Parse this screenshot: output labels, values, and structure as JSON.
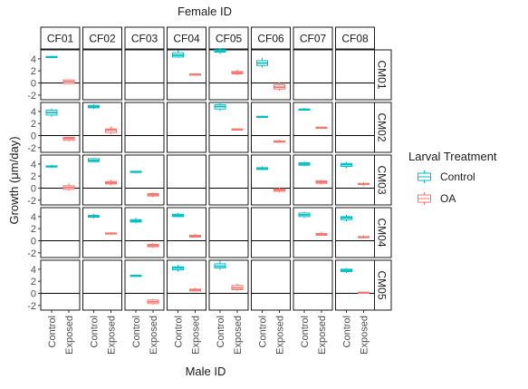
{
  "chart_data": {
    "type": "boxplot",
    "title": "",
    "top_strip_title": "Female ID",
    "xlabel": "Male ID",
    "ylabel": "Growth (μm/day)",
    "col_facets": [
      "CF01",
      "CF02",
      "CF03",
      "CF04",
      "CF05",
      "CF06",
      "CF07",
      "CF08"
    ],
    "row_facets": [
      "CM01",
      "CM02",
      "CM03",
      "CM04",
      "CM05"
    ],
    "x_categories": [
      "Control",
      "Exposed"
    ],
    "y_ticks": [
      -2,
      0,
      2,
      4
    ],
    "ylim": [
      -2.5,
      5.5
    ],
    "reference_line_y": 0,
    "legend": {
      "title": "Larval Treatment",
      "placement": "right",
      "entries": [
        {
          "label": "Control",
          "color": "#00BFC4"
        },
        {
          "label": "OA",
          "color": "#F8766D"
        }
      ]
    },
    "cells": [
      {
        "row": "CM01",
        "col": "CF01",
        "control": [
          4.1,
          4.2,
          4.3,
          4.4,
          4.5
        ],
        "exposed": [
          -0.2,
          -0.1,
          0.2,
          0.5,
          0.6
        ]
      },
      {
        "row": "CM01",
        "col": "CF04",
        "control": [
          4.2,
          4.3,
          4.6,
          5.0,
          5.4
        ],
        "exposed": [
          1.2,
          1.3,
          1.4,
          1.5,
          1.6
        ]
      },
      {
        "row": "CM01",
        "col": "CF05",
        "control": [
          4.8,
          5.1,
          5.3,
          5.5,
          5.7
        ],
        "exposed": [
          1.3,
          1.5,
          1.7,
          1.9,
          2.2
        ]
      },
      {
        "row": "CM01",
        "col": "CF06",
        "control": [
          2.6,
          2.9,
          3.3,
          3.7,
          4.2
        ],
        "exposed": [
          -1.3,
          -1.0,
          -0.7,
          -0.3,
          0.1
        ]
      },
      {
        "row": "CM02",
        "col": "CF01",
        "control": [
          3.1,
          3.4,
          3.8,
          4.2,
          4.5
        ],
        "exposed": [
          -1.0,
          -0.8,
          -0.5,
          -0.3,
          -0.2
        ]
      },
      {
        "row": "CM02",
        "col": "CF02",
        "control": [
          4.4,
          4.6,
          4.8,
          5.0,
          5.2
        ],
        "exposed": [
          0.2,
          0.5,
          0.9,
          1.1,
          1.5
        ]
      },
      {
        "row": "CM02",
        "col": "CF05",
        "control": [
          4.1,
          4.4,
          4.8,
          5.1,
          5.6
        ],
        "exposed": [
          0.8,
          0.9,
          1.0,
          1.1,
          1.2
        ]
      },
      {
        "row": "CM02",
        "col": "CF06",
        "control": [
          2.9,
          3.0,
          3.1,
          3.2,
          3.3
        ],
        "exposed": [
          -1.2,
          -1.1,
          -1.0,
          -0.9,
          -0.7
        ]
      },
      {
        "row": "CM02",
        "col": "CF07",
        "control": [
          4.1,
          4.2,
          4.3,
          4.4,
          4.6
        ],
        "exposed": [
          1.1,
          1.2,
          1.3,
          1.4,
          1.5
        ]
      },
      {
        "row": "CM03",
        "col": "CF01",
        "control": [
          3.3,
          3.5,
          3.6,
          3.7,
          3.9
        ],
        "exposed": [
          -0.4,
          -0.2,
          0.1,
          0.4,
          0.8
        ]
      },
      {
        "row": "CM03",
        "col": "CF02",
        "control": [
          4.3,
          4.4,
          4.6,
          4.9,
          5.0
        ],
        "exposed": [
          0.5,
          0.7,
          0.9,
          1.1,
          1.4
        ]
      },
      {
        "row": "CM03",
        "col": "CF03",
        "control": [
          2.5,
          2.6,
          2.7,
          2.8,
          2.9
        ],
        "exposed": [
          -1.5,
          -1.3,
          -1.1,
          -0.9,
          -0.7
        ]
      },
      {
        "row": "CM03",
        "col": "CF06",
        "control": [
          3.0,
          3.1,
          3.2,
          3.4,
          3.6
        ],
        "exposed": [
          -0.7,
          -0.5,
          -0.3,
          -0.1,
          0.1
        ]
      },
      {
        "row": "CM03",
        "col": "CF07",
        "control": [
          3.6,
          3.8,
          4.0,
          4.2,
          4.5
        ],
        "exposed": [
          0.6,
          0.8,
          1.0,
          1.2,
          1.4
        ]
      },
      {
        "row": "CM03",
        "col": "CF08",
        "control": [
          3.3,
          3.6,
          3.9,
          4.1,
          4.3
        ],
        "exposed": [
          0.4,
          0.6,
          0.7,
          0.8,
          1.0
        ]
      },
      {
        "row": "CM04",
        "col": "CF02",
        "control": [
          3.7,
          3.9,
          4.0,
          4.2,
          4.5
        ],
        "exposed": [
          1.0,
          1.1,
          1.2,
          1.3,
          1.4
        ]
      },
      {
        "row": "CM04",
        "col": "CF03",
        "control": [
          2.9,
          3.1,
          3.3,
          3.5,
          3.8
        ],
        "exposed": [
          -1.2,
          -1.0,
          -0.8,
          -0.6,
          -0.4
        ]
      },
      {
        "row": "CM04",
        "col": "CF04",
        "control": [
          3.9,
          4.0,
          4.2,
          4.4,
          4.6
        ],
        "exposed": [
          0.5,
          0.6,
          0.8,
          0.9,
          1.1
        ]
      },
      {
        "row": "CM04",
        "col": "CF07",
        "control": [
          3.8,
          4.0,
          4.3,
          4.6,
          4.8
        ],
        "exposed": [
          0.8,
          0.9,
          1.1,
          1.2,
          1.5
        ]
      },
      {
        "row": "CM04",
        "col": "CF08",
        "control": [
          3.2,
          3.5,
          3.8,
          4.0,
          4.3
        ],
        "exposed": [
          0.4,
          0.5,
          0.6,
          0.7,
          0.9
        ]
      },
      {
        "row": "CM05",
        "col": "CF03",
        "control": [
          2.7,
          2.8,
          2.9,
          3.0,
          3.1
        ],
        "exposed": [
          -1.9,
          -1.7,
          -1.4,
          -1.1,
          -0.9
        ]
      },
      {
        "row": "CM05",
        "col": "CF04",
        "control": [
          3.6,
          3.9,
          4.2,
          4.4,
          4.7
        ],
        "exposed": [
          0.3,
          0.4,
          0.6,
          0.7,
          0.9
        ]
      },
      {
        "row": "CM05",
        "col": "CF05",
        "control": [
          3.9,
          4.2,
          4.5,
          4.9,
          5.4
        ],
        "exposed": [
          0.4,
          0.6,
          0.9,
          1.3,
          1.6
        ]
      },
      {
        "row": "CM05",
        "col": "CF08",
        "control": [
          3.4,
          3.6,
          3.8,
          4.0,
          4.2
        ],
        "exposed": [
          -0.1,
          0.0,
          0.1,
          0.2,
          0.3
        ]
      }
    ]
  }
}
